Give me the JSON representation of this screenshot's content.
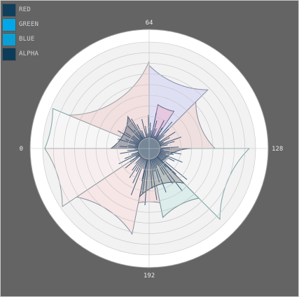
{
  "chart_data": {
    "type": "polar-area",
    "angle_ticks": [
      "64",
      "128",
      "192",
      "0"
    ],
    "theta_range": [
      0,
      256
    ],
    "legend": [
      {
        "name": "RED",
        "color": "#0f3f5c"
      },
      {
        "name": "GREEN",
        "color": "#00a8e8"
      },
      {
        "name": "BLUE",
        "color": "#0aa0d6"
      },
      {
        "name": "ALPHA",
        "color": "#0c3c5a"
      }
    ],
    "r_max": 1.0,
    "rings": 10,
    "sectors": [
      {
        "start": 0,
        "end": 16,
        "r": 0.98,
        "fill": "#f7f7f7",
        "stroke": "#7aa3a3"
      },
      {
        "start": 16,
        "end": 64,
        "r": 0.82,
        "fill": "#f2dcdc",
        "stroke": "#9aa0a6"
      },
      {
        "start": 64,
        "end": 96,
        "r": 0.78,
        "fill": "#dcdcf4",
        "stroke": "#8a90a8"
      },
      {
        "start": 96,
        "end": 128,
        "r": 0.62,
        "fill": "#f0dcdc",
        "stroke": "#8a90a0"
      },
      {
        "start": 128,
        "end": 160,
        "r": 0.94,
        "fill": "#f4f4f4",
        "stroke": "#7aa3a3"
      },
      {
        "start": 160,
        "end": 184,
        "r": 0.66,
        "fill": "#d8ecea",
        "stroke": "#6d8f90"
      },
      {
        "start": 184,
        "end": 200,
        "r": 0.52,
        "fill": "#f2dcdc",
        "stroke": "#8a90a0"
      },
      {
        "start": 200,
        "end": 232,
        "r": 0.82,
        "fill": "#f7e4e4",
        "stroke": "#8a90a0"
      },
      {
        "start": 232,
        "end": 256,
        "r": 0.98,
        "fill": "#f8eeee",
        "stroke": "#8a9aa0"
      },
      {
        "start": 0,
        "end": 40,
        "r": 0.36,
        "fill": "#9a9aa4",
        "stroke": "#4c5c70"
      },
      {
        "start": 72,
        "end": 88,
        "r": 0.42,
        "fill": "#e8c4dc",
        "stroke": "#6c6c8a"
      },
      {
        "start": 128,
        "end": 192,
        "r": 0.4,
        "fill": "#a6a6aa",
        "stroke": "#4c5c70"
      },
      {
        "start": 160,
        "end": 200,
        "r": 0.46,
        "fill": "#b6b8b8",
        "stroke": "#4c5c70"
      }
    ]
  }
}
